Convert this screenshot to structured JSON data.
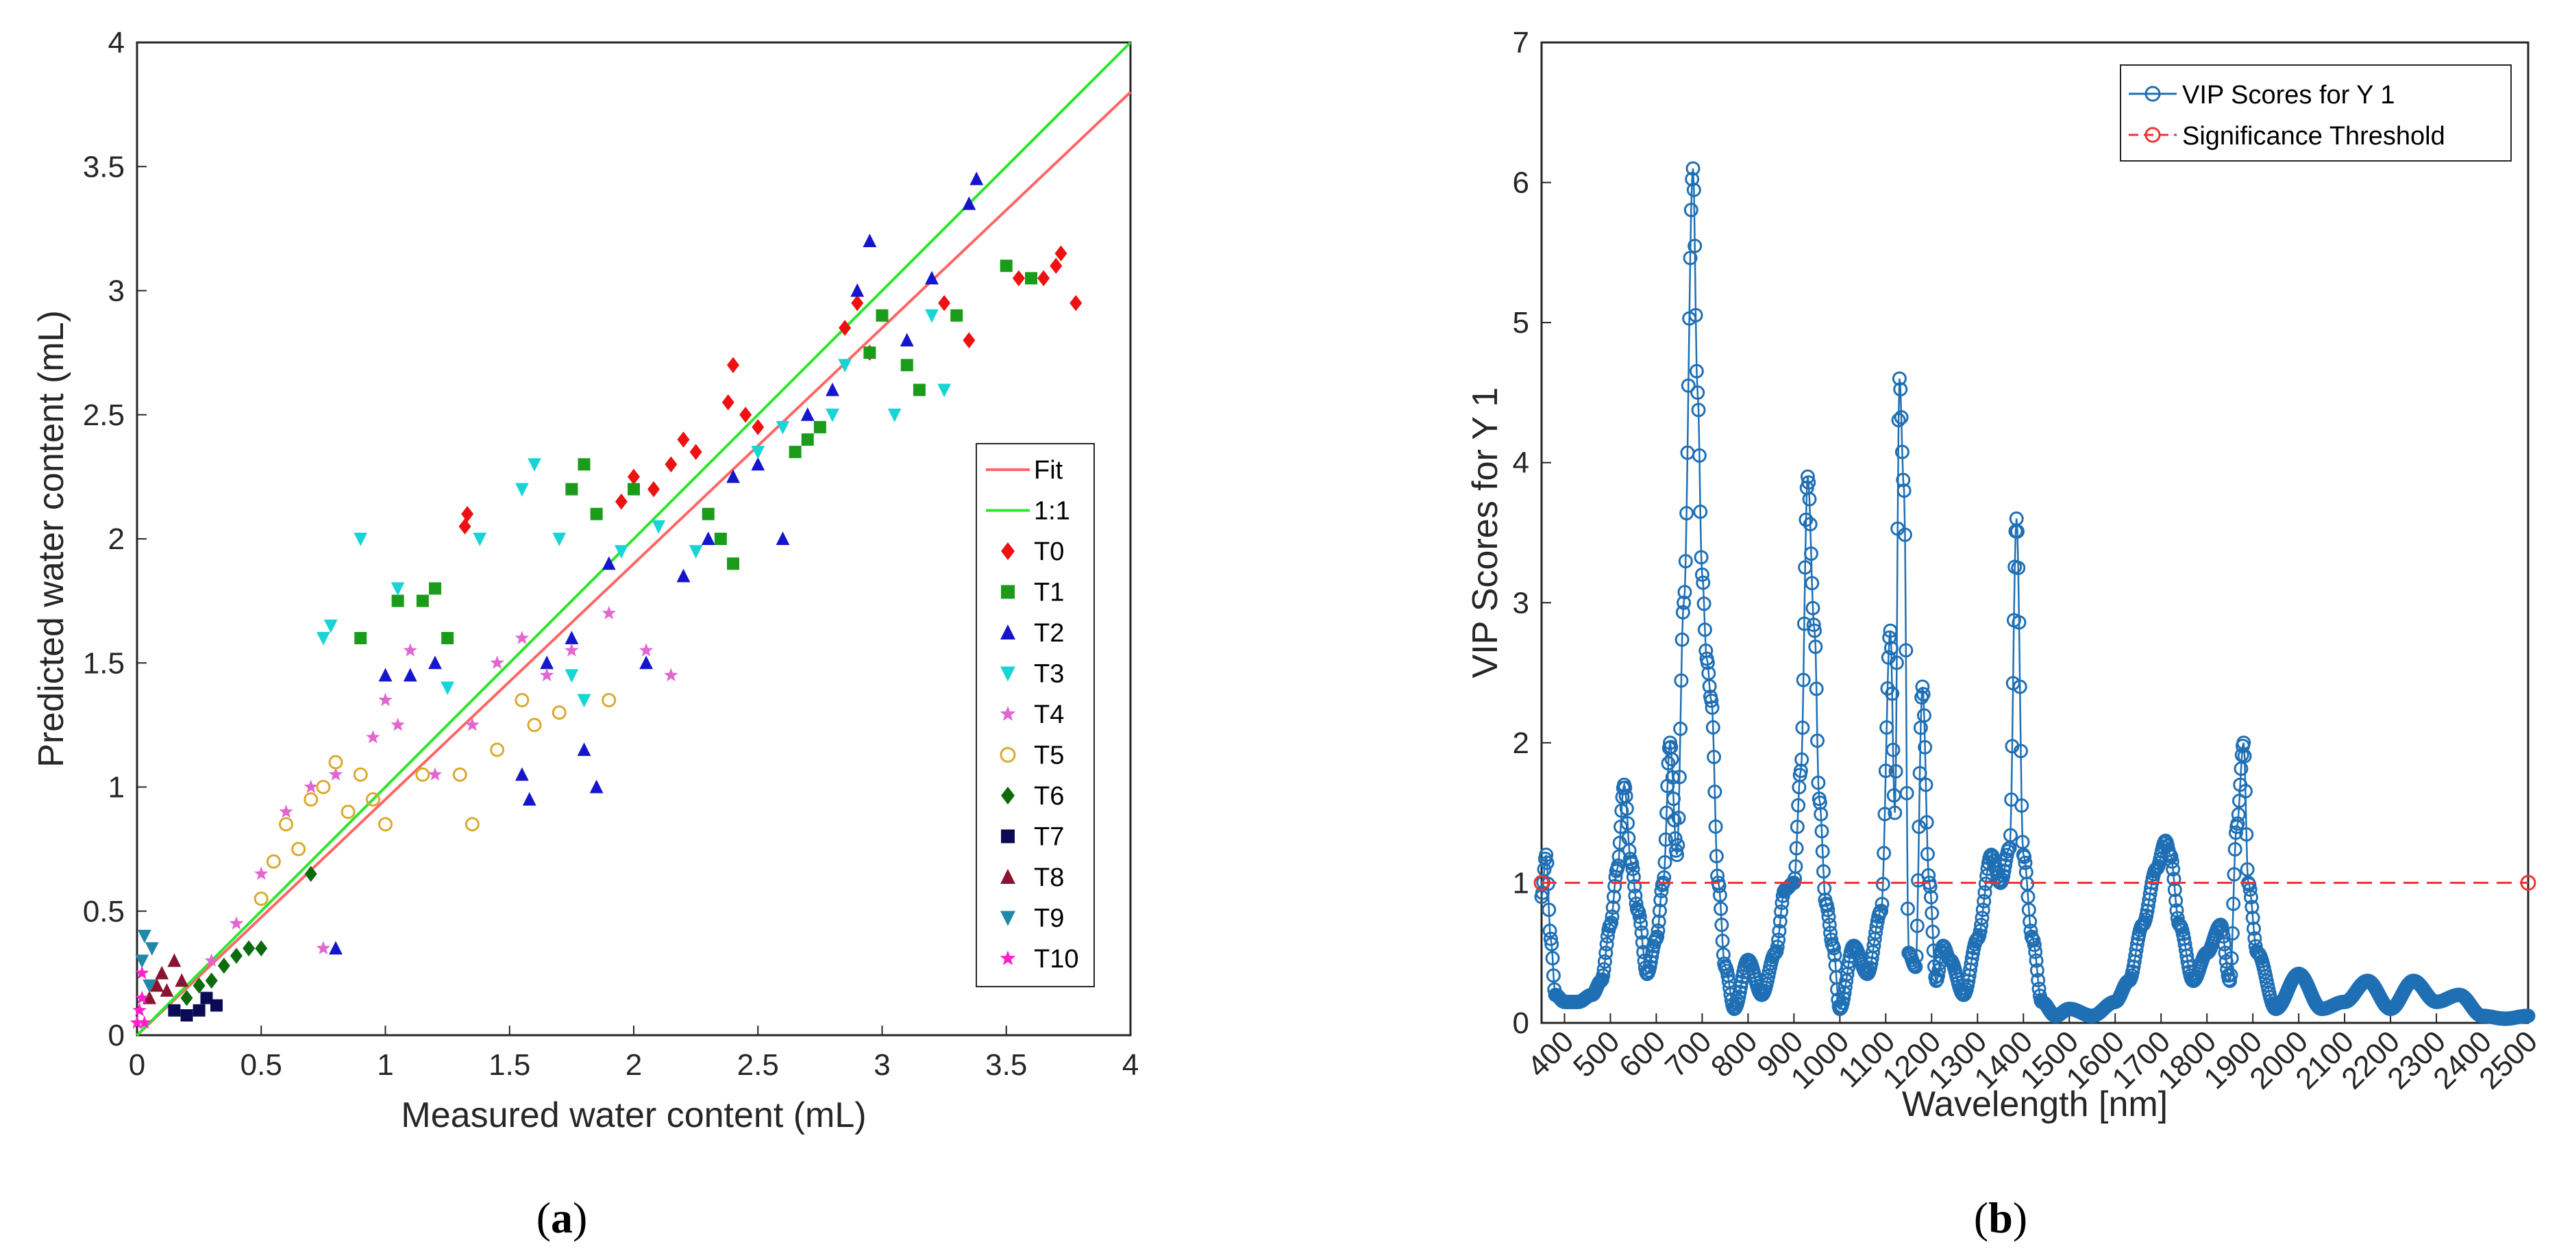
{
  "panels": {
    "a": {
      "open": "(",
      "letter": "a",
      "close": ")"
    },
    "b": {
      "open": "(",
      "letter": "b",
      "close": ")"
    }
  },
  "chart_data": [
    {
      "type": "scatter",
      "panel": "a",
      "xlabel": "Measured water content  (mL)",
      "ylabel": "Predicted water content  (mL)",
      "xlim": [
        0,
        4
      ],
      "ylim": [
        0,
        4
      ],
      "xticks": [
        0,
        0.5,
        1,
        1.5,
        2,
        2.5,
        3,
        3.5,
        4
      ],
      "yticks": [
        0,
        0.5,
        1,
        1.5,
        2,
        2.5,
        3,
        3.5,
        4
      ],
      "lines": [
        {
          "name": "Fit",
          "color": "#ff6666",
          "x": [
            0,
            4
          ],
          "y": [
            0,
            3.8
          ]
        },
        {
          "name": "1:1",
          "color": "#2ee62e",
          "x": [
            0,
            4
          ],
          "y": [
            0,
            4
          ]
        }
      ],
      "series": [
        {
          "name": "T0",
          "color": "#ee1111",
          "marker": "diamond",
          "points": [
            [
              1.32,
              2.05
            ],
            [
              1.33,
              2.1
            ],
            [
              1.95,
              2.15
            ],
            [
              2.0,
              2.25
            ],
            [
              2.08,
              2.2
            ],
            [
              2.15,
              2.3
            ],
            [
              2.2,
              2.4
            ],
            [
              2.25,
              2.35
            ],
            [
              2.38,
              2.55
            ],
            [
              2.4,
              2.7
            ],
            [
              2.45,
              2.5
            ],
            [
              2.5,
              2.45
            ],
            [
              2.85,
              2.85
            ],
            [
              2.9,
              2.95
            ],
            [
              2.95,
              2.75
            ],
            [
              3.25,
              2.95
            ],
            [
              3.35,
              2.8
            ],
            [
              3.55,
              3.05
            ],
            [
              3.65,
              3.05
            ],
            [
              3.7,
              3.1
            ],
            [
              3.78,
              2.95
            ],
            [
              3.72,
              3.15
            ]
          ]
        },
        {
          "name": "T1",
          "color": "#1a9c1a",
          "marker": "square",
          "points": [
            [
              0.9,
              1.6
            ],
            [
              1.05,
              1.75
            ],
            [
              1.15,
              1.75
            ],
            [
              1.2,
              1.8
            ],
            [
              1.25,
              1.6
            ],
            [
              1.75,
              2.2
            ],
            [
              1.8,
              2.3
            ],
            [
              1.85,
              2.1
            ],
            [
              2.0,
              2.2
            ],
            [
              2.3,
              2.1
            ],
            [
              2.35,
              2.0
            ],
            [
              2.4,
              1.9
            ],
            [
              2.65,
              2.35
            ],
            [
              2.7,
              2.4
            ],
            [
              2.75,
              2.45
            ],
            [
              2.95,
              2.75
            ],
            [
              3.0,
              2.9
            ],
            [
              3.1,
              2.7
            ],
            [
              3.15,
              2.6
            ],
            [
              3.3,
              2.9
            ],
            [
              3.5,
              3.1
            ],
            [
              3.6,
              3.05
            ]
          ]
        },
        {
          "name": "T2",
          "color": "#1515cc",
          "marker": "triangle-up",
          "points": [
            [
              0.8,
              0.35
            ],
            [
              1.0,
              1.45
            ],
            [
              1.1,
              1.45
            ],
            [
              1.2,
              1.5
            ],
            [
              1.55,
              1.05
            ],
            [
              1.58,
              0.95
            ],
            [
              1.65,
              1.5
            ],
            [
              1.75,
              1.6
            ],
            [
              1.8,
              1.15
            ],
            [
              1.85,
              1.0
            ],
            [
              1.9,
              1.9
            ],
            [
              2.05,
              1.5
            ],
            [
              2.2,
              1.85
            ],
            [
              2.3,
              2.0
            ],
            [
              2.4,
              2.25
            ],
            [
              2.5,
              2.3
            ],
            [
              2.6,
              2.0
            ],
            [
              2.7,
              2.5
            ],
            [
              2.8,
              2.6
            ],
            [
              2.9,
              3.0
            ],
            [
              2.95,
              3.2
            ],
            [
              3.1,
              2.8
            ],
            [
              3.2,
              3.05
            ],
            [
              3.35,
              3.35
            ],
            [
              3.38,
              3.45
            ]
          ]
        },
        {
          "name": "T3",
          "color": "#18d5d5",
          "marker": "triangle-down",
          "points": [
            [
              0.75,
              1.6
            ],
            [
              0.78,
              1.65
            ],
            [
              0.9,
              2.0
            ],
            [
              1.05,
              1.8
            ],
            [
              1.25,
              1.4
            ],
            [
              1.38,
              2.0
            ],
            [
              1.55,
              2.2
            ],
            [
              1.6,
              2.3
            ],
            [
              1.7,
              2.0
            ],
            [
              1.75,
              1.45
            ],
            [
              1.8,
              1.35
            ],
            [
              1.95,
              1.95
            ],
            [
              2.1,
              2.05
            ],
            [
              2.25,
              1.95
            ],
            [
              2.5,
              2.35
            ],
            [
              2.6,
              2.45
            ],
            [
              2.8,
              2.5
            ],
            [
              2.85,
              2.7
            ],
            [
              3.05,
              2.5
            ],
            [
              3.2,
              2.9
            ],
            [
              3.25,
              2.6
            ]
          ]
        },
        {
          "name": "T4",
          "color": "#e066d0",
          "marker": "star",
          "points": [
            [
              0.3,
              0.3
            ],
            [
              0.4,
              0.45
            ],
            [
              0.5,
              0.65
            ],
            [
              0.6,
              0.9
            ],
            [
              0.7,
              1.0
            ],
            [
              0.75,
              0.35
            ],
            [
              0.8,
              1.05
            ],
            [
              0.95,
              1.2
            ],
            [
              1.0,
              1.35
            ],
            [
              1.05,
              1.25
            ],
            [
              1.1,
              1.55
            ],
            [
              1.2,
              1.05
            ],
            [
              1.35,
              1.25
            ],
            [
              1.45,
              1.5
            ],
            [
              1.55,
              1.6
            ],
            [
              1.65,
              1.45
            ],
            [
              1.75,
              1.55
            ],
            [
              1.9,
              1.7
            ],
            [
              2.05,
              1.55
            ],
            [
              2.15,
              1.45
            ]
          ]
        },
        {
          "name": "T5",
          "color": "#d9aa30",
          "marker": "circle-open",
          "points": [
            [
              0.5,
              0.55
            ],
            [
              0.55,
              0.7
            ],
            [
              0.6,
              0.85
            ],
            [
              0.65,
              0.75
            ],
            [
              0.7,
              0.95
            ],
            [
              0.75,
              1.0
            ],
            [
              0.8,
              1.1
            ],
            [
              0.85,
              0.9
            ],
            [
              0.9,
              1.05
            ],
            [
              0.95,
              0.95
            ],
            [
              1.0,
              0.85
            ],
            [
              1.15,
              1.05
            ],
            [
              1.3,
              1.05
            ],
            [
              1.35,
              0.85
            ],
            [
              1.45,
              1.15
            ],
            [
              1.55,
              1.35
            ],
            [
              1.6,
              1.25
            ],
            [
              1.7,
              1.3
            ],
            [
              1.9,
              1.35
            ]
          ]
        },
        {
          "name": "T6",
          "color": "#0d6b0d",
          "marker": "diamond",
          "points": [
            [
              0.2,
              0.15
            ],
            [
              0.25,
              0.2
            ],
            [
              0.3,
              0.22
            ],
            [
              0.35,
              0.28
            ],
            [
              0.4,
              0.32
            ],
            [
              0.45,
              0.35
            ],
            [
              0.5,
              0.35
            ],
            [
              0.7,
              0.65
            ]
          ]
        },
        {
          "name": "T7",
          "color": "#0b0b55",
          "marker": "square",
          "points": [
            [
              0.15,
              0.1
            ],
            [
              0.2,
              0.08
            ],
            [
              0.25,
              0.1
            ],
            [
              0.28,
              0.15
            ],
            [
              0.32,
              0.12
            ]
          ]
        },
        {
          "name": "T8",
          "color": "#8a1430",
          "marker": "triangle-up",
          "points": [
            [
              0.05,
              0.15
            ],
            [
              0.08,
              0.2
            ],
            [
              0.1,
              0.25
            ],
            [
              0.12,
              0.18
            ],
            [
              0.15,
              0.3
            ],
            [
              0.18,
              0.22
            ]
          ]
        },
        {
          "name": "T9",
          "color": "#2088aa",
          "marker": "triangle-down",
          "points": [
            [
              0.02,
              0.3
            ],
            [
              0.03,
              0.4
            ],
            [
              0.05,
              0.2
            ],
            [
              0.06,
              0.35
            ]
          ]
        },
        {
          "name": "T10",
          "color": "#ff22cc",
          "marker": "star",
          "points": [
            [
              0.0,
              0.05
            ],
            [
              0.01,
              0.1
            ],
            [
              0.02,
              0.15
            ],
            [
              0.02,
              0.25
            ],
            [
              0.03,
              0.05
            ]
          ]
        }
      ]
    },
    {
      "type": "line",
      "panel": "b",
      "xlabel": "Wavelength [nm]",
      "ylabel": "VIP Scores for Y 1",
      "xlim": [
        350,
        2500
      ],
      "ylim": [
        0,
        7
      ],
      "xticks": [
        400,
        500,
        600,
        700,
        800,
        900,
        1000,
        1100,
        1200,
        1300,
        1400,
        1500,
        1600,
        1700,
        1800,
        1900,
        2000,
        2100,
        2200,
        2300,
        2400,
        2500
      ],
      "yticks": [
        0,
        1,
        2,
        3,
        4,
        5,
        6,
        7
      ],
      "series": [
        {
          "name": "VIP Scores for Y 1",
          "color": "#1f6fb4",
          "marker": "circle-open",
          "x": [
            350,
            360,
            370,
            380,
            400,
            430,
            460,
            480,
            500,
            515,
            530,
            545,
            560,
            580,
            600,
            615,
            630,
            645,
            660,
            680,
            690,
            700,
            710,
            720,
            735,
            750,
            770,
            800,
            830,
            860,
            880,
            900,
            915,
            930,
            945,
            955,
            970,
            985,
            1000,
            1030,
            1060,
            1090,
            1110,
            1120,
            1130,
            1140,
            1150,
            1165,
            1180,
            1195,
            1210,
            1225,
            1240,
            1270,
            1300,
            1330,
            1350,
            1370,
            1385,
            1400,
            1420,
            1440,
            1470,
            1500,
            1550,
            1600,
            1630,
            1660,
            1690,
            1710,
            1720,
            1740,
            1770,
            1800,
            1830,
            1850,
            1865,
            1880,
            1890,
            1910,
            1950,
            2000,
            2050,
            2100,
            2150,
            2200,
            2250,
            2300,
            2350,
            2400,
            2450,
            2500
          ],
          "y": [
            0.9,
            1.2,
            0.6,
            0.2,
            0.15,
            0.15,
            0.2,
            0.3,
            0.7,
            1.1,
            1.7,
            1.15,
            0.8,
            0.35,
            0.6,
            1.0,
            2.0,
            1.2,
            3.0,
            6.1,
            4.5,
            3.2,
            2.6,
            2.3,
            1.0,
            0.4,
            0.1,
            0.45,
            0.2,
            0.5,
            0.95,
            1.0,
            1.8,
            3.9,
            2.8,
            1.6,
            0.85,
            0.55,
            0.1,
            0.55,
            0.35,
            0.8,
            2.8,
            1.5,
            4.6,
            3.8,
            0.5,
            0.4,
            2.4,
            1.0,
            0.3,
            0.55,
            0.45,
            0.2,
            0.6,
            1.2,
            1.0,
            1.25,
            3.6,
            1.2,
            0.6,
            0.15,
            0.05,
            0.1,
            0.05,
            0.15,
            0.3,
            0.7,
            1.1,
            1.3,
            1.2,
            0.7,
            0.3,
            0.5,
            0.7,
            0.3,
            1.4,
            2.0,
            1.0,
            0.5,
            0.1,
            0.35,
            0.1,
            0.15,
            0.3,
            0.1,
            0.3,
            0.15,
            0.2,
            0.05,
            0.03,
            0.05
          ]
        },
        {
          "name": "Significance Threshold",
          "color": "#ee3333",
          "marker": "circle-open",
          "dashed": true,
          "x": [
            350,
            2500
          ],
          "y": [
            1,
            1
          ]
        }
      ]
    }
  ]
}
